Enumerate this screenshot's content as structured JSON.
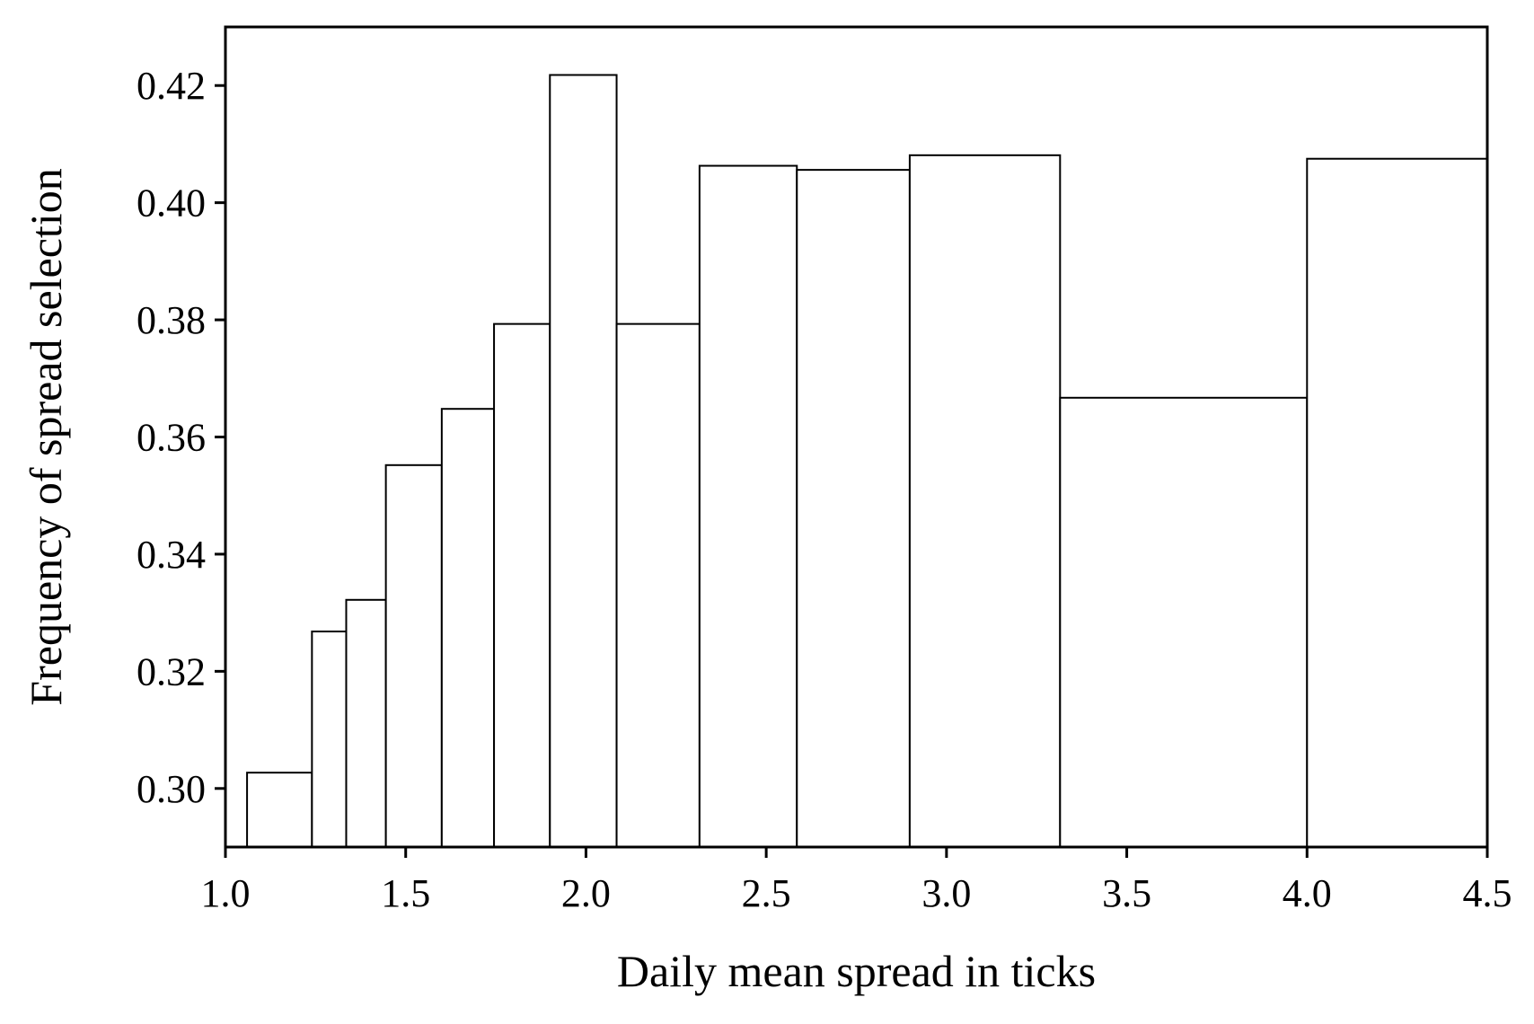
{
  "chart_data": {
    "type": "bar",
    "xlabel": "Daily mean spread in ticks",
    "ylabel": "Frequency of spread selection",
    "xlim": [
      1.0,
      4.5
    ],
    "ylim": [
      0.29,
      0.43
    ],
    "xticks": [
      "1.0",
      "1.5",
      "2.0",
      "2.5",
      "3.0",
      "3.5",
      "4.0",
      "4.5"
    ],
    "yticks": [
      "0.30",
      "0.32",
      "0.34",
      "0.36",
      "0.38",
      "0.40",
      "0.42"
    ],
    "grid": false,
    "bins": [
      {
        "x0": 1.06,
        "x1": 1.24,
        "value": 0.3027
      },
      {
        "x0": 1.24,
        "x1": 1.335,
        "value": 0.3268
      },
      {
        "x0": 1.335,
        "x1": 1.445,
        "value": 0.3322
      },
      {
        "x0": 1.445,
        "x1": 1.6,
        "value": 0.3552
      },
      {
        "x0": 1.6,
        "x1": 1.745,
        "value": 0.3648
      },
      {
        "x0": 1.745,
        "x1": 1.9,
        "value": 0.3793
      },
      {
        "x0": 1.9,
        "x1": 2.085,
        "value": 0.4218
      },
      {
        "x0": 2.085,
        "x1": 2.315,
        "value": 0.3793
      },
      {
        "x0": 2.315,
        "x1": 2.585,
        "value": 0.4063
      },
      {
        "x0": 2.585,
        "x1": 2.898,
        "value": 0.4056
      },
      {
        "x0": 2.898,
        "x1": 3.315,
        "value": 0.4081
      },
      {
        "x0": 3.315,
        "x1": 4.0,
        "value": 0.3667
      },
      {
        "x0": 4.0,
        "x1": 4.5,
        "value": 0.4075
      }
    ]
  }
}
